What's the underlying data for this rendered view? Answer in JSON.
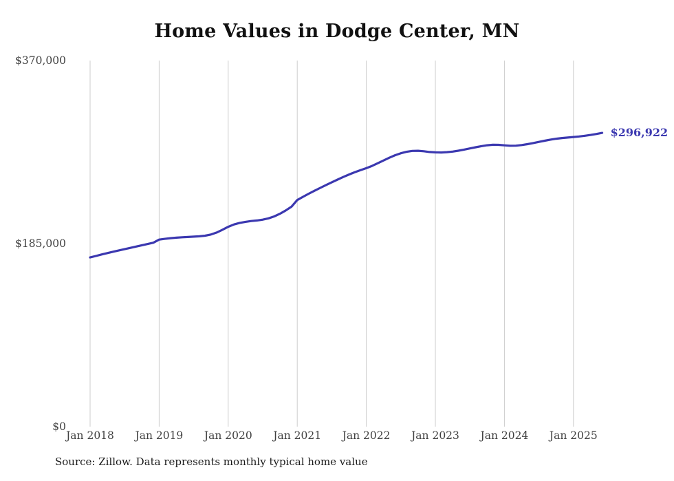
{
  "title": "Home Values in Dodge Center, MN",
  "source_note": "Source: Zillow. Data represents monthly typical home value",
  "colors": {
    "line": "#3b38b0",
    "grid": "#cccccc",
    "tick_text": "#3f3f3f",
    "title_text": "#111111",
    "end_label_text": "#3b38b0"
  },
  "chart_data": {
    "type": "line",
    "title": "Home Values in Dodge Center, MN",
    "series_name": "Typical home value",
    "x_start": "2018-01",
    "x_end": "2025-06",
    "x_unit": "month",
    "ylim": [
      0,
      370000
    ],
    "grid": "vertical-only",
    "legend_position": "none",
    "end_label": "$296,922",
    "final_value": 296922,
    "y_ticks": [
      {
        "label": "$0",
        "value": 0
      },
      {
        "label": "$185,000",
        "value": 185000
      },
      {
        "label": "$370,000",
        "value": 370000
      }
    ],
    "x_ticks": [
      {
        "label": "Jan 2018",
        "month_index": 0
      },
      {
        "label": "Jan 2019",
        "month_index": 12
      },
      {
        "label": "Jan 2020",
        "month_index": 24
      },
      {
        "label": "Jan 2021",
        "month_index": 36
      },
      {
        "label": "Jan 2022",
        "month_index": 48
      },
      {
        "label": "Jan 2023",
        "month_index": 60
      },
      {
        "label": "Jan 2024",
        "month_index": 72
      },
      {
        "label": "Jan 2025",
        "month_index": 84
      }
    ],
    "values": [
      171000,
      172500,
      174000,
      175400,
      176800,
      178100,
      179400,
      180700,
      182000,
      183300,
      184600,
      185900,
      189000,
      189800,
      190500,
      191000,
      191400,
      191700,
      192000,
      192400,
      193000,
      194200,
      196200,
      199000,
      202000,
      204300,
      205900,
      207000,
      207800,
      208400,
      209200,
      210500,
      212500,
      215200,
      218500,
      222300,
      229000,
      232300,
      235400,
      238400,
      241300,
      244200,
      247000,
      249700,
      252300,
      254800,
      257100,
      259200,
      261200,
      263500,
      266200,
      269000,
      271800,
      274300,
      276300,
      277800,
      278700,
      278800,
      278300,
      277600,
      277200,
      277100,
      277400,
      278000,
      278900,
      280000,
      281200,
      282400,
      283500,
      284400,
      284900,
      284800,
      284300,
      283900,
      284000,
      284600,
      285500,
      286600,
      287800,
      289000,
      290100,
      291000,
      291700,
      292200,
      292700,
      293300,
      294000,
      294800,
      295800,
      296922
    ]
  }
}
